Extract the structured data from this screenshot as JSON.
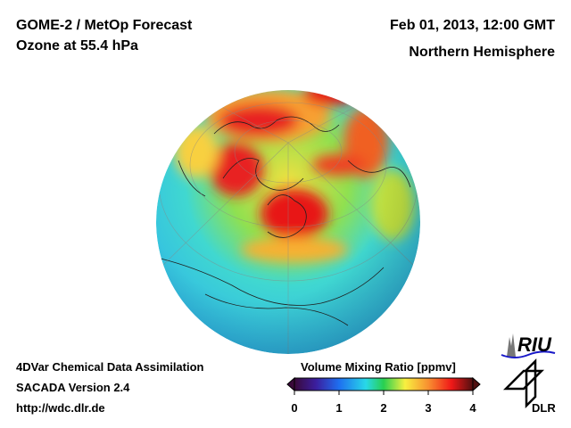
{
  "header": {
    "title_line1": "GOME‑2 / MetOp Forecast",
    "title_line2": "Ozone at 55.4 hPa",
    "date": "Feb 01, 2013, 12:00 GMT",
    "region": "Northern Hemisphere"
  },
  "footer": {
    "line1": "4DVar Chemical Data Assimilation",
    "line2": "SACADA Version 2.4",
    "url": "http://wdc.dlr.de"
  },
  "colorbar": {
    "label": "Volume Mixing Ratio [ppmv]",
    "ticks": [
      "0",
      "1",
      "2",
      "3",
      "4"
    ],
    "range": [
      0,
      4
    ],
    "colors": [
      "#3a0a3a",
      "#3b1e9e",
      "#1e6ff0",
      "#28d8e8",
      "#28d050",
      "#f8f040",
      "#f89030",
      "#f01818",
      "#501010"
    ]
  },
  "logos": {
    "riu": "RIU",
    "dlr": "DLR"
  }
}
